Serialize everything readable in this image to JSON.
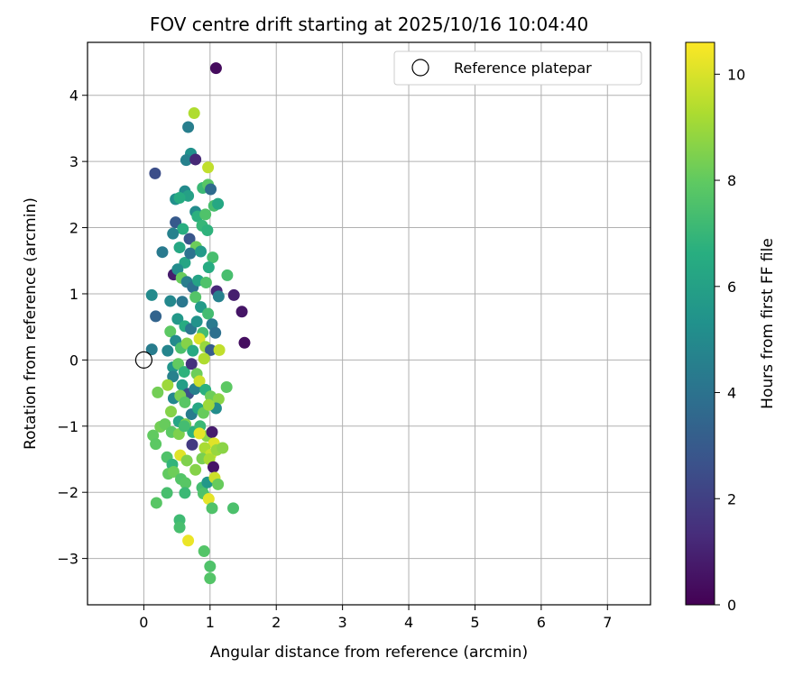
{
  "chart_data": {
    "type": "scatter",
    "title": "FOV centre drift starting at 2025/10/16 10:04:40",
    "xlabel": "Angular distance from reference (arcmin)",
    "ylabel": "Rotation from reference (arcmin)",
    "xlim": [
      -0.85,
      7.65
    ],
    "ylim": [
      -3.7,
      4.8
    ],
    "xticks": [
      0,
      1,
      2,
      3,
      4,
      5,
      6,
      7
    ],
    "yticks": [
      -3,
      -2,
      -1,
      0,
      1,
      2,
      3,
      4
    ],
    "grid": true,
    "legend": {
      "position": "top-right",
      "entries": [
        "Reference platepar"
      ]
    },
    "reference_point": {
      "x": 0,
      "y": 0
    },
    "colorbar": {
      "label": "Hours from first FF file",
      "range": [
        0,
        10.6
      ],
      "ticks": [
        0,
        2,
        4,
        6,
        8,
        10
      ],
      "colormap": "viridis"
    },
    "points": [
      [
        1.09,
        4.41,
        0.3
      ],
      [
        0.76,
        3.73,
        9.3
      ],
      [
        0.67,
        3.52,
        4.5
      ],
      [
        0.71,
        3.12,
        5.3
      ],
      [
        0.64,
        3.02,
        4.6
      ],
      [
        0.78,
        3.03,
        1.2
      ],
      [
        0.97,
        2.91,
        9.6
      ],
      [
        0.17,
        2.82,
        2.5
      ],
      [
        0.62,
        2.55,
        5.0
      ],
      [
        0.67,
        2.48,
        6.0
      ],
      [
        0.48,
        2.43,
        5.2
      ],
      [
        0.54,
        2.45,
        6.5
      ],
      [
        0.89,
        2.6,
        7.1
      ],
      [
        0.97,
        2.65,
        7.8
      ],
      [
        1.01,
        2.58,
        3.7
      ],
      [
        1.06,
        2.33,
        7.4
      ],
      [
        1.12,
        2.36,
        6.3
      ],
      [
        0.78,
        2.24,
        5.1
      ],
      [
        0.81,
        2.17,
        6.7
      ],
      [
        0.93,
        2.2,
        7.6
      ],
      [
        0.48,
        2.08,
        3.0
      ],
      [
        0.59,
        1.98,
        6.6
      ],
      [
        0.88,
        2.03,
        7.0
      ],
      [
        0.96,
        1.96,
        6.8
      ],
      [
        0.44,
        1.91,
        4.6
      ],
      [
        0.28,
        1.63,
        4.3
      ],
      [
        0.54,
        1.7,
        6.3
      ],
      [
        0.69,
        1.83,
        2.8
      ],
      [
        0.79,
        1.71,
        8.2
      ],
      [
        0.62,
        1.47,
        6.2
      ],
      [
        0.7,
        1.61,
        4.0
      ],
      [
        0.86,
        1.64,
        5.7
      ],
      [
        1.04,
        1.55,
        7.4
      ],
      [
        0.98,
        1.4,
        6.5
      ],
      [
        0.45,
        1.29,
        0.8
      ],
      [
        0.51,
        1.37,
        5.1
      ],
      [
        0.57,
        1.24,
        8.1
      ],
      [
        0.65,
        1.18,
        4.5
      ],
      [
        0.74,
        1.1,
        3.9
      ],
      [
        0.82,
        1.2,
        6.1
      ],
      [
        0.94,
        1.17,
        7.6
      ],
      [
        1.1,
        1.04,
        1.2
      ],
      [
        1.26,
        1.28,
        7.4
      ],
      [
        1.36,
        0.98,
        0.9
      ],
      [
        1.48,
        0.73,
        0.6
      ],
      [
        1.52,
        0.26,
        0.4
      ],
      [
        0.12,
        0.98,
        5.0
      ],
      [
        0.18,
        0.66,
        3.4
      ],
      [
        0.4,
        0.89,
        4.9
      ],
      [
        0.58,
        0.88,
        4.2
      ],
      [
        0.78,
        0.95,
        7.7
      ],
      [
        0.86,
        0.8,
        5.7
      ],
      [
        0.97,
        0.7,
        7.3
      ],
      [
        1.13,
        0.96,
        4.6
      ],
      [
        0.51,
        0.62,
        5.6
      ],
      [
        0.62,
        0.51,
        6.5
      ],
      [
        0.71,
        0.47,
        4.2
      ],
      [
        0.8,
        0.58,
        5.4
      ],
      [
        0.89,
        0.41,
        7.3
      ],
      [
        1.03,
        0.54,
        4.3
      ],
      [
        1.08,
        0.41,
        3.9
      ],
      [
        0.4,
        0.43,
        7.9
      ],
      [
        0.48,
        0.29,
        5.0
      ],
      [
        0.56,
        0.18,
        7.5
      ],
      [
        0.65,
        0.25,
        8.6
      ],
      [
        0.74,
        0.14,
        6.4
      ],
      [
        0.84,
        0.32,
        10.0
      ],
      [
        0.93,
        0.2,
        8.9
      ],
      [
        1.01,
        0.15,
        3.1
      ],
      [
        1.14,
        0.15,
        9.6
      ],
      [
        0.12,
        0.16,
        4.4
      ],
      [
        0.36,
        0.14,
        4.8
      ],
      [
        0.44,
        -0.11,
        5.5
      ],
      [
        0.52,
        -0.06,
        8.0
      ],
      [
        0.61,
        -0.18,
        6.8
      ],
      [
        0.72,
        -0.06,
        1.5
      ],
      [
        0.8,
        -0.21,
        8.2
      ],
      [
        0.91,
        0.02,
        9.3
      ],
      [
        0.44,
        -0.25,
        4.6
      ],
      [
        0.58,
        -0.38,
        5.9
      ],
      [
        0.67,
        -0.51,
        2.6
      ],
      [
        0.77,
        -0.44,
        4.6
      ],
      [
        0.84,
        -0.32,
        9.8
      ],
      [
        0.93,
        -0.45,
        6.7
      ],
      [
        1.01,
        -0.55,
        8.2
      ],
      [
        1.13,
        -0.59,
        8.7
      ],
      [
        1.09,
        -0.73,
        5.1
      ],
      [
        1.25,
        -0.41,
        7.9
      ],
      [
        0.21,
        -0.49,
        8.3
      ],
      [
        0.36,
        -0.38,
        9.0
      ],
      [
        0.45,
        -0.58,
        4.9
      ],
      [
        0.55,
        -0.54,
        8.4
      ],
      [
        0.62,
        -0.64,
        7.8
      ],
      [
        0.72,
        -0.82,
        4.4
      ],
      [
        0.82,
        -0.73,
        6.3
      ],
      [
        0.9,
        -0.8,
        8.1
      ],
      [
        0.98,
        -0.68,
        9.0
      ],
      [
        0.41,
        -0.78,
        8.6
      ],
      [
        0.53,
        -0.93,
        6.2
      ],
      [
        0.63,
        -0.97,
        8.4
      ],
      [
        0.74,
        -1.09,
        6.7
      ],
      [
        0.85,
        -1.0,
        7.1
      ],
      [
        0.95,
        -1.15,
        8.7
      ],
      [
        1.03,
        -1.09,
        0.8
      ],
      [
        1.06,
        -1.26,
        10.1
      ],
      [
        0.25,
        -1.01,
        8.3
      ],
      [
        0.32,
        -0.97,
        8.1
      ],
      [
        0.42,
        -1.09,
        7.9
      ],
      [
        0.53,
        -1.12,
        8.5
      ],
      [
        0.61,
        -1.0,
        7.3
      ],
      [
        0.73,
        -1.28,
        1.8
      ],
      [
        0.84,
        -1.11,
        10.2
      ],
      [
        0.92,
        -1.33,
        9.2
      ],
      [
        1.01,
        -1.43,
        9.7
      ],
      [
        1.1,
        -1.36,
        8.9
      ],
      [
        1.19,
        -1.33,
        8.7
      ],
      [
        0.14,
        -1.14,
        8.0
      ],
      [
        0.18,
        -1.27,
        7.9
      ],
      [
        0.35,
        -1.47,
        7.6
      ],
      [
        0.43,
        -1.58,
        6.9
      ],
      [
        0.55,
        -1.44,
        10.1
      ],
      [
        0.65,
        -1.52,
        8.5
      ],
      [
        0.78,
        -1.66,
        8.6
      ],
      [
        0.88,
        -1.49,
        8.4
      ],
      [
        0.99,
        -1.5,
        9.2
      ],
      [
        1.05,
        -1.62,
        0.6
      ],
      [
        0.37,
        -1.72,
        8.0
      ],
      [
        0.45,
        -1.69,
        8.2
      ],
      [
        0.56,
        -1.8,
        7.7
      ],
      [
        0.63,
        -1.86,
        7.8
      ],
      [
        0.88,
        -1.93,
        7.3
      ],
      [
        0.96,
        -1.85,
        5.6
      ],
      [
        1.07,
        -1.78,
        9.8
      ],
      [
        1.12,
        -1.88,
        8.1
      ],
      [
        0.35,
        -2.01,
        7.4
      ],
      [
        0.62,
        -2.01,
        7.1
      ],
      [
        0.9,
        -2.02,
        7.6
      ],
      [
        0.98,
        -2.1,
        10.2
      ],
      [
        0.19,
        -2.16,
        7.8
      ],
      [
        1.03,
        -2.24,
        7.6
      ],
      [
        1.35,
        -2.24,
        7.5
      ],
      [
        0.54,
        -2.42,
        7.2
      ],
      [
        0.54,
        -2.53,
        7.4
      ],
      [
        0.67,
        -2.73,
        10.3
      ],
      [
        0.91,
        -2.89,
        7.7
      ],
      [
        1.0,
        -3.12,
        7.6
      ],
      [
        1.0,
        -3.3,
        7.7
      ]
    ]
  }
}
